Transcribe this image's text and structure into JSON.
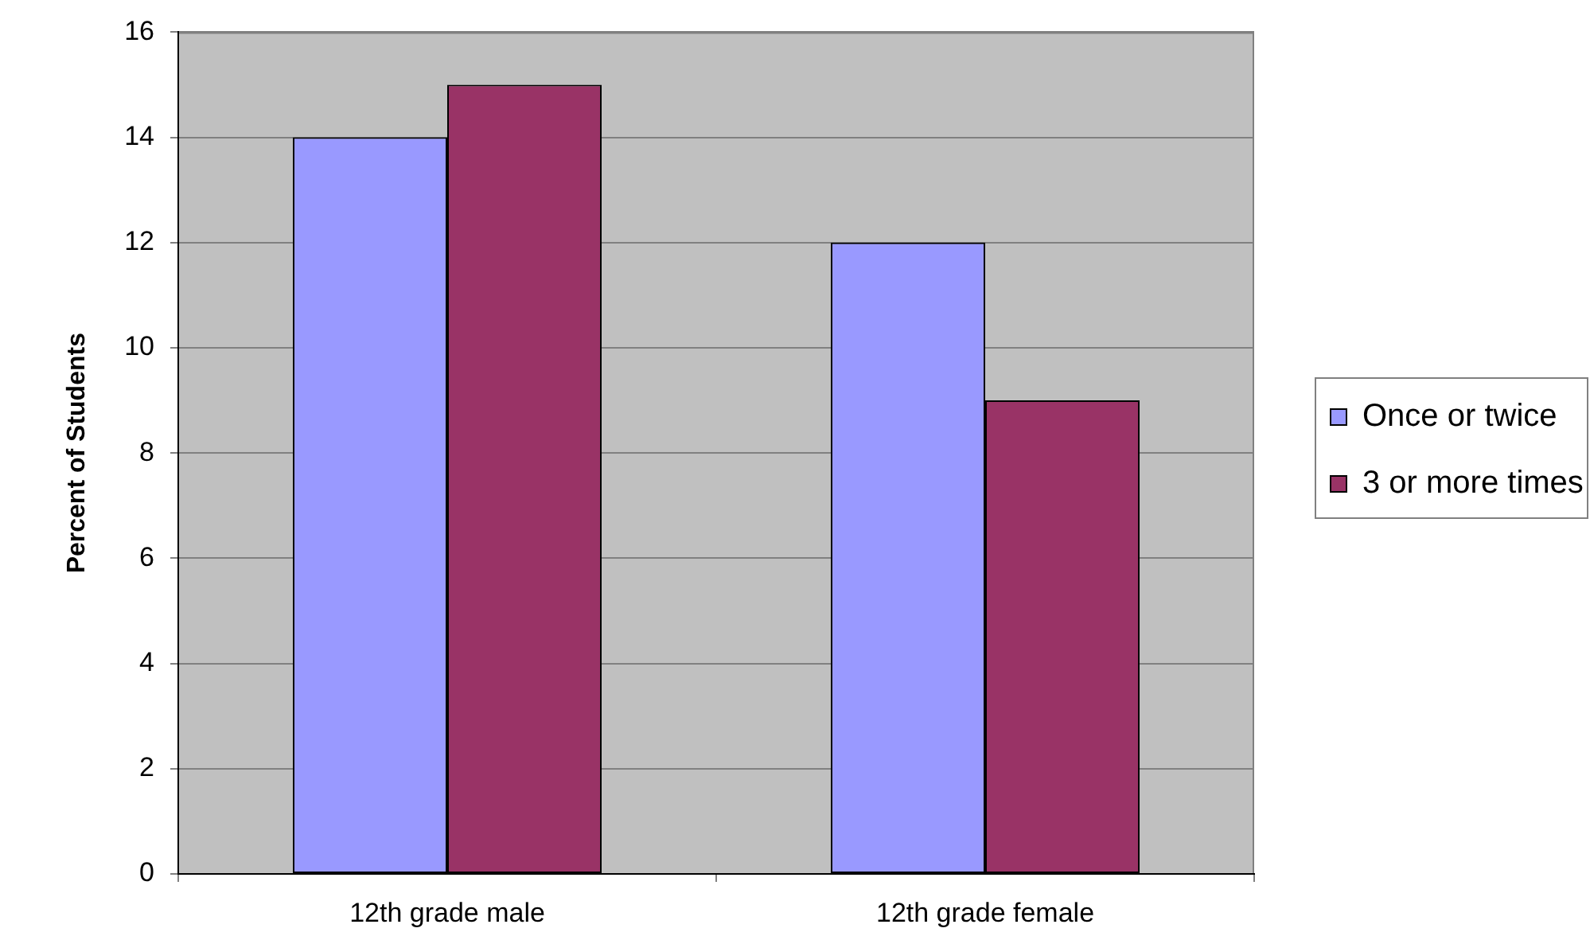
{
  "chart_data": {
    "type": "bar",
    "ylabel": "Percent of Students",
    "categories": [
      "12th grade male",
      "12th grade female"
    ],
    "series": [
      {
        "name": "Once or twice",
        "color": "#9999ff",
        "values": [
          14,
          12
        ]
      },
      {
        "name": "3 or more times",
        "color": "#993366",
        "values": [
          15,
          9
        ]
      }
    ],
    "ylim": [
      0,
      16
    ],
    "yticks": [
      0,
      2,
      4,
      6,
      8,
      10,
      12,
      14,
      16
    ],
    "grid": "y",
    "legend": "right"
  }
}
